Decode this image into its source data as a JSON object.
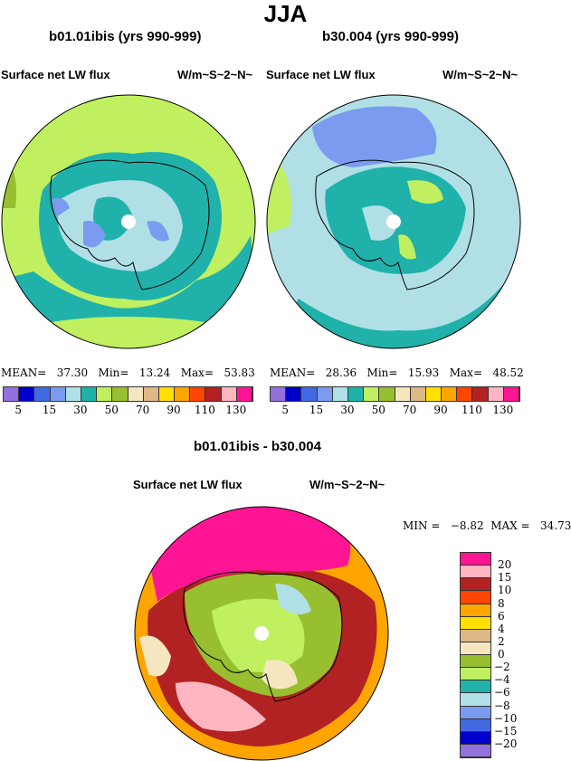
{
  "title": "JJA",
  "palette": [
    "#9370DB",
    "#0000CD",
    "#4169E1",
    "#7B9BF0",
    "#B0E0E6",
    "#20B2AA",
    "#C0F060",
    "#98BF30",
    "#F5E6C0",
    "#DEB887",
    "#FFE000",
    "#FFA500",
    "#FF4500",
    "#B22222",
    "#FFB6C1",
    "#FF1493"
  ],
  "panels": [
    {
      "title": "b01.01ibis (yrs 990-999)",
      "left_label": "Surface net LW flux",
      "right_label": "W/m~S~2~N~",
      "mean_label": "MEAN=",
      "mean": "37.30",
      "min_label": "Min=",
      "min": "13.24",
      "max_label": "Max=",
      "max": "53.83"
    },
    {
      "title": "b30.004 (yrs 990-999)",
      "left_label": "Surface net LW flux",
      "right_label": "W/m~S~2~N~",
      "mean_label": "MEAN=",
      "mean": "28.36",
      "min_label": "Min=",
      "min": "15.93",
      "max_label": "Max=",
      "max": "48.52"
    }
  ],
  "colorbar_labels": [
    "5",
    "15",
    "30",
    "50",
    "70",
    "90",
    "110",
    "130"
  ],
  "diff": {
    "title": "b01.01ibis - b30.004",
    "left_label": "Surface net LW flux",
    "right_label": "W/m~S~2~N~",
    "minmax": "MIN =   −8.82  MAX =   34.73",
    "colorbar_labels": [
      "20",
      "15",
      "10",
      "8",
      "6",
      "4",
      "2",
      "0",
      "−2",
      "−4",
      "−6",
      "−8",
      "−10",
      "−15",
      "−20"
    ]
  }
}
